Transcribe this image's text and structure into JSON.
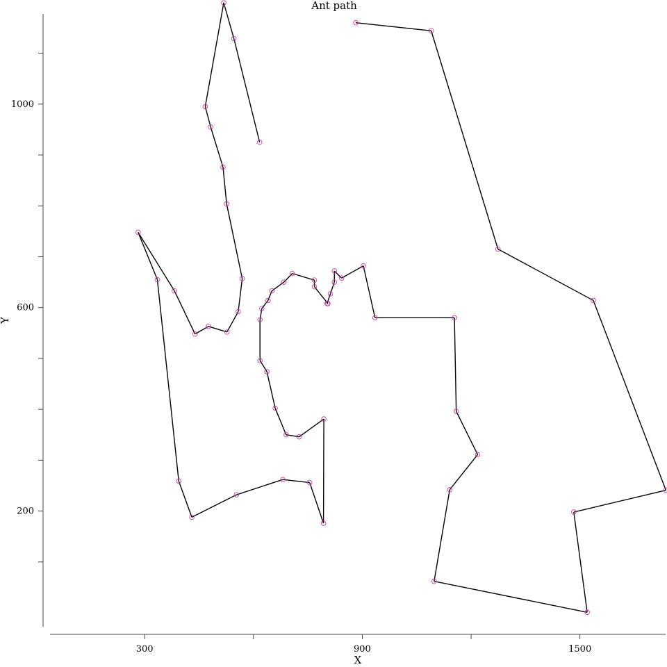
{
  "chart_data": {
    "type": "line",
    "title": "Ant path",
    "xlabel": "X",
    "ylabel": "Y",
    "xlim": [
      20,
      1740
    ],
    "ylim": [
      -30,
      1180
    ],
    "xticks": [
      {
        "value": 300,
        "label": "300"
      },
      {
        "value": 600,
        "label": ""
      },
      {
        "value": 900,
        "label": "900"
      },
      {
        "value": 1200,
        "label": ""
      },
      {
        "value": 1500,
        "label": "1500"
      }
    ],
    "yticks": [
      {
        "value": 100,
        "label": ""
      },
      {
        "value": 200,
        "label": "200"
      },
      {
        "value": 300,
        "label": ""
      },
      {
        "value": 400,
        "label": ""
      },
      {
        "value": 500,
        "label": ""
      },
      {
        "value": 600,
        "label": "600"
      },
      {
        "value": 700,
        "label": ""
      },
      {
        "value": 800,
        "label": ""
      },
      {
        "value": 900,
        "label": ""
      },
      {
        "value": 1000,
        "label": "1000"
      },
      {
        "value": 1100,
        "label": ""
      }
    ],
    "grid": false,
    "line_color": "#000000",
    "marker_color": "#d6389a",
    "series": [
      {
        "x": [
          882,
          1090,
          1274,
          1537,
          1737,
          1483,
          1520,
          1098,
          1141,
          1218,
          1159,
          1154,
          935,
          903,
          843,
          823,
          823,
          812,
          803,
          805,
          768,
          768,
          707,
          684,
          651,
          640,
          623,
          618,
          618,
          637,
          660,
          690,
          726,
          794,
          793,
          755,
          681,
          553,
          430,
          394,
          335,
          282,
          382,
          439,
          476,
          527,
          558,
          569,
          526,
          516,
          482,
          467,
          518,
          546,
          617
        ],
        "y": [
          1160,
          1144,
          715,
          614,
          241,
          198,
          1,
          62,
          242,
          311,
          396,
          580,
          580,
          682,
          658,
          672,
          650,
          627,
          608,
          608,
          641,
          654,
          667,
          650,
          633,
          614,
          598,
          576,
          496,
          474,
          402,
          350,
          346,
          381,
          176,
          256,
          262,
          232,
          188,
          259,
          655,
          748,
          633,
          548,
          563,
          552,
          592,
          657,
          804,
          876,
          955,
          995,
          1199,
          1129,
          925
        ]
      }
    ]
  }
}
